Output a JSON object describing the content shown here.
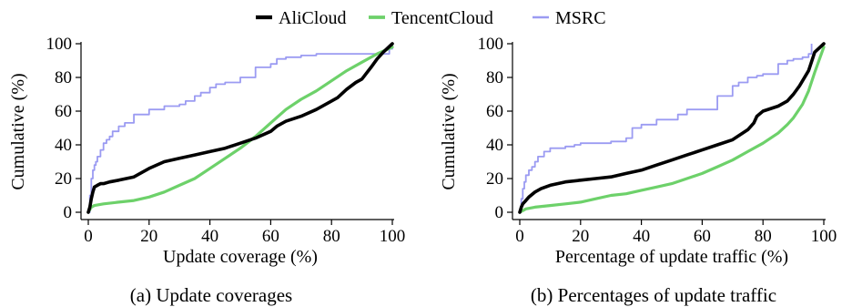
{
  "colors": {
    "AliCloud": "#000000",
    "TencentCloud": "#6dd16a",
    "MSRC": "#9b9bf2"
  },
  "legend": [
    "AliCloud",
    "TencentCloud",
    "MSRC"
  ],
  "chart_data": [
    {
      "type": "line",
      "caption": "(a) Update coverages",
      "xlabel": "Update coverage (%)",
      "ylabel": "Cumulative (%)",
      "xlim": [
        0,
        100
      ],
      "ylim": [
        0,
        100
      ],
      "xticks": [
        "0",
        "20",
        "40",
        "60",
        "80",
        "100"
      ],
      "yticks": [
        "0",
        "20",
        "40",
        "60",
        "80",
        "100"
      ],
      "legend_position": "top-center",
      "grid": false,
      "series": [
        {
          "name": "AliCloud",
          "x": [
            0,
            0.5,
            1,
            1.5,
            2,
            3,
            4,
            5,
            7,
            10,
            15,
            20,
            25,
            30,
            35,
            40,
            45,
            50,
            55,
            60,
            62,
            65,
            70,
            75,
            80,
            82,
            85,
            88,
            90,
            93,
            95,
            97,
            100
          ],
          "y": [
            0,
            3,
            8,
            12,
            15,
            16,
            17,
            17,
            18,
            19,
            21,
            26,
            30,
            32,
            34,
            36,
            38,
            41,
            44,
            48,
            51,
            54,
            57,
            61,
            66,
            68,
            73,
            77,
            79,
            86,
            91,
            95,
            100
          ]
        },
        {
          "name": "TencentCloud",
          "x": [
            0,
            1,
            2,
            5,
            10,
            15,
            20,
            25,
            30,
            35,
            40,
            45,
            50,
            55,
            60,
            65,
            70,
            75,
            80,
            85,
            90,
            95,
            100
          ],
          "y": [
            0,
            3,
            4,
            5,
            6,
            7,
            9,
            12,
            16,
            20,
            26,
            32,
            38,
            45,
            53,
            61,
            67,
            72,
            78,
            84,
            89,
            94,
            98
          ]
        },
        {
          "name": "MSRC",
          "x": [
            0,
            0.5,
            1,
            1.5,
            2,
            2.5,
            3,
            4,
            5,
            6,
            7,
            8,
            10,
            12,
            15,
            20,
            25,
            30,
            32,
            35,
            37,
            40,
            42,
            45,
            50,
            55,
            60,
            62,
            65,
            70,
            75,
            80,
            85,
            90,
            95,
            99,
            100
          ],
          "y": [
            0,
            10,
            20,
            25,
            28,
            30,
            33,
            37,
            41,
            43,
            45,
            48,
            51,
            53,
            58,
            61,
            63,
            64,
            66,
            69,
            71,
            74,
            76,
            77,
            80,
            86,
            88,
            91,
            92,
            93,
            94,
            94,
            94,
            94,
            94,
            97,
            100
          ]
        }
      ]
    },
    {
      "type": "line",
      "caption": "(b) Percentages of update traffic",
      "xlabel": "Percentage of update traffic (%)",
      "ylabel": "Cumulative (%)",
      "xlim": [
        0,
        100
      ],
      "ylim": [
        0,
        100
      ],
      "xticks": [
        "0",
        "20",
        "40",
        "60",
        "80",
        "100"
      ],
      "yticks": [
        "0",
        "20",
        "40",
        "60",
        "80",
        "100"
      ],
      "legend_position": "top-center",
      "grid": false,
      "series": [
        {
          "name": "AliCloud",
          "x": [
            0,
            0.5,
            1,
            2,
            3,
            5,
            7,
            10,
            15,
            20,
            25,
            30,
            35,
            40,
            45,
            50,
            55,
            60,
            65,
            70,
            75,
            77,
            78,
            80,
            85,
            88,
            90,
            92,
            95,
            97,
            100
          ],
          "y": [
            0,
            3,
            5,
            7,
            9,
            12,
            14,
            16,
            18,
            19,
            20,
            21,
            23,
            25,
            28,
            31,
            34,
            37,
            40,
            43,
            49,
            53,
            57,
            60,
            63,
            66,
            70,
            75,
            84,
            95,
            100
          ]
        },
        {
          "name": "TencentCloud",
          "x": [
            0,
            1,
            2,
            5,
            10,
            15,
            20,
            25,
            30,
            35,
            40,
            45,
            50,
            55,
            60,
            65,
            70,
            75,
            80,
            85,
            88,
            90,
            93,
            95,
            97,
            100
          ],
          "y": [
            0,
            1,
            2,
            3,
            4,
            5,
            6,
            8,
            10,
            11,
            13,
            15,
            17,
            20,
            23,
            27,
            31,
            36,
            41,
            47,
            52,
            56,
            64,
            72,
            83,
            98
          ]
        },
        {
          "name": "MSRC",
          "x": [
            0,
            0.5,
            1,
            1.5,
            2,
            3,
            4,
            5,
            6,
            8,
            10,
            12,
            15,
            18,
            20,
            25,
            30,
            35,
            37,
            40,
            45,
            50,
            52,
            55,
            60,
            65,
            70,
            72,
            75,
            78,
            80,
            85,
            88,
            90,
            93,
            95,
            96
          ],
          "y": [
            0,
            8,
            14,
            18,
            22,
            25,
            27,
            30,
            33,
            36,
            38,
            38,
            39,
            40,
            41,
            41,
            42,
            44,
            50,
            52,
            55,
            55,
            58,
            61,
            61,
            69,
            75,
            77,
            80,
            81,
            82,
            88,
            90,
            91,
            92,
            94,
            100
          ]
        }
      ]
    }
  ]
}
